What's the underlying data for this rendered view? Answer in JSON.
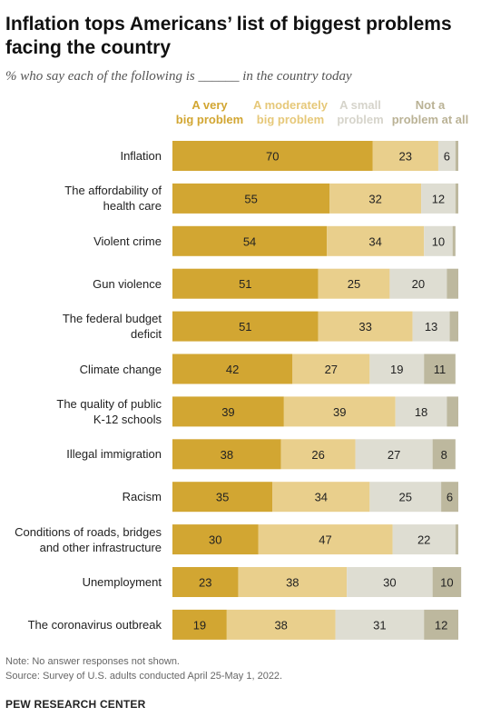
{
  "title": "Inflation tops Americans’ list of biggest problems facing the country",
  "subtitle": "% who say each of the following is ______ in the country today",
  "legend": [
    {
      "label_line1": "A very",
      "label_line2": "big problem"
    },
    {
      "label_line1": "A moderately",
      "label_line2": "big problem"
    },
    {
      "label_line1": "A small",
      "label_line2": "problem"
    },
    {
      "label_line1": "Not a",
      "label_line2": "problem at all"
    }
  ],
  "note": "Note: No answer responses not shown.",
  "source": "Source: Survey of U.S. adults conducted April 25-May 1, 2022.",
  "org": "PEW RESEARCH CENTER",
  "colors": {
    "very_big": "#d2a632",
    "moderately_big": "#e9cf8c",
    "small": "#deddd2",
    "not_at_all": "#bdb89e",
    "very_big_legend": "#d2a632",
    "moderately_big_legend": "#e6c879",
    "small_legend": "#d6d4cb",
    "not_at_all_legend": "#bab295"
  },
  "chart_data": {
    "type": "bar",
    "orientation": "horizontal",
    "stacked": true,
    "categories": [
      [
        "Inflation"
      ],
      [
        "The affordability of",
        "health care"
      ],
      [
        "Violent crime"
      ],
      [
        "Gun violence"
      ],
      [
        "The federal budget",
        "deficit"
      ],
      [
        "Climate change"
      ],
      [
        "The quality of public",
        "K-12 schools"
      ],
      [
        "Illegal immigration"
      ],
      [
        "Racism"
      ],
      [
        "Conditions of roads, bridges",
        "and other infrastructure"
      ],
      [
        "Unemployment"
      ],
      [
        "The coronavirus outbreak"
      ]
    ],
    "series": [
      {
        "name": "A very big problem",
        "values": [
          70,
          55,
          54,
          51,
          51,
          42,
          39,
          38,
          35,
          30,
          23,
          19
        ],
        "labels": [
          "70",
          "55",
          "54",
          "51",
          "51",
          "42",
          "39",
          "38",
          "35",
          "30",
          "23",
          "19"
        ]
      },
      {
        "name": "A moderately big problem",
        "values": [
          23,
          32,
          34,
          25,
          33,
          27,
          39,
          26,
          34,
          47,
          38,
          38
        ],
        "labels": [
          "23",
          "32",
          "34",
          "25",
          "33",
          "27",
          "39",
          "26",
          "34",
          "47",
          "38",
          "38"
        ]
      },
      {
        "name": "A small problem",
        "values": [
          6,
          12,
          10,
          20,
          13,
          19,
          18,
          27,
          25,
          22,
          30,
          31
        ],
        "labels": [
          "6",
          "12",
          "10",
          "20",
          "13",
          "19",
          "18",
          "27",
          "25",
          "22",
          "30",
          "31"
        ]
      },
      {
        "name": "Not a problem at all",
        "values": [
          1,
          1,
          1,
          4,
          3,
          11,
          4,
          8,
          6,
          1,
          10,
          12
        ],
        "labels": [
          "",
          "",
          "",
          "",
          "",
          "11",
          "",
          "8",
          "6",
          "",
          "10",
          "12"
        ]
      }
    ],
    "xlim": [
      0,
      100
    ]
  }
}
